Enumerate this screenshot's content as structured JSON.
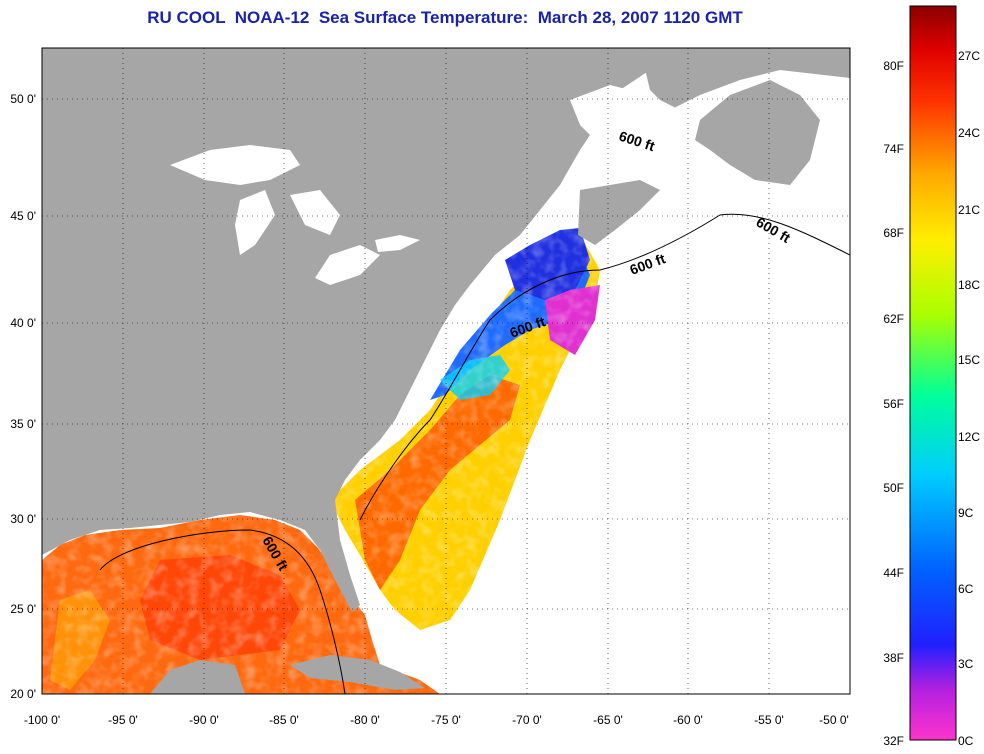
{
  "title": "RU COOL  NOAA-12  Sea Surface Temperature:  March 28, 2007 1120 GMT",
  "map": {
    "lon_range": [
      -100,
      -50
    ],
    "lat_range": [
      20,
      52.5
    ],
    "lon_ticks": [
      "-100 0'",
      "-95 0'",
      "-90 0'",
      "-85 0'",
      "-80 0'",
      "-75 0'",
      "-70 0'",
      "-65 0'",
      "-60 0'",
      "-55 0'",
      "-50 0'"
    ],
    "lat_ticks": [
      "50 0'",
      "45 0'",
      "40 0'",
      "35 0'",
      "30 0'",
      "25 0'",
      "20 0'"
    ],
    "grid": true,
    "land_color": "#a6a6a6",
    "no_data_color": "#ffffff",
    "contour_labels": [
      "600 ft",
      "600 ft",
      "600 ft",
      "600 ft",
      "600 ft"
    ]
  },
  "colorbar": {
    "fahrenheit_labels": [
      "80F",
      "74F",
      "68F",
      "62F",
      "56F",
      "50F",
      "44F",
      "38F",
      "32F"
    ],
    "celsius_labels": [
      "27C",
      "24C",
      "21C",
      "18C",
      "15C",
      "12C",
      "9C",
      "6C",
      "3C",
      "0C"
    ],
    "range_c": [
      0,
      28.5
    ],
    "colors_bottom_to_top": [
      "#ff33cc",
      "#8a2be2",
      "#0000ff",
      "#0088ff",
      "#00e5ff",
      "#33ff99",
      "#ccff00",
      "#ffee00",
      "#ffaa00",
      "#ff4400",
      "#e60000",
      "#8b0000"
    ]
  }
}
